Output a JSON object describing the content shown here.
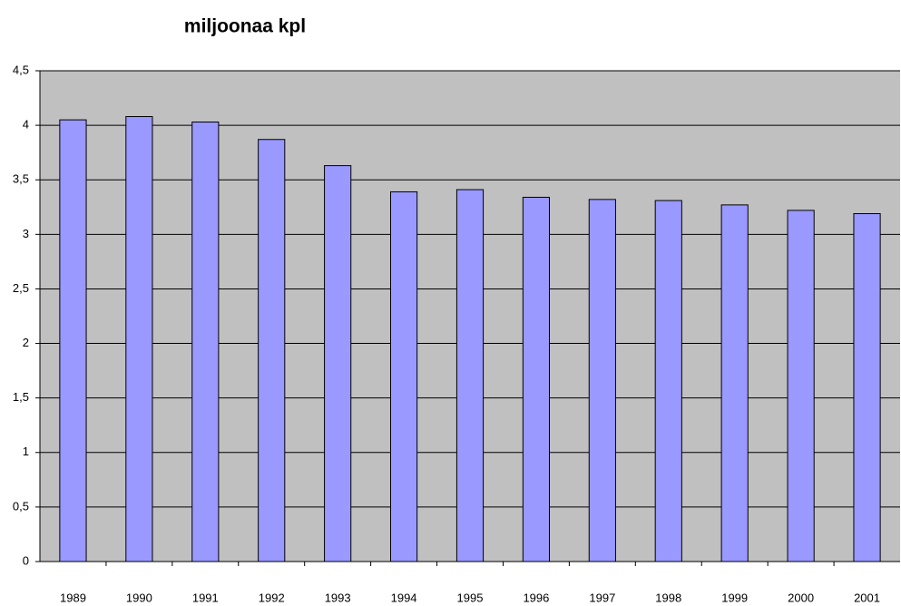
{
  "chart_data": {
    "type": "bar",
    "title": "miljoonaa kpl",
    "categories": [
      "1989",
      "1990",
      "1991",
      "1992",
      "1993",
      "1994",
      "1995",
      "1996",
      "1997",
      "1998",
      "1999",
      "2000",
      "2001"
    ],
    "values": [
      4.05,
      4.08,
      4.03,
      3.87,
      3.63,
      3.39,
      3.41,
      3.34,
      3.32,
      3.31,
      3.27,
      3.22,
      3.19
    ],
    "color": "#9999ff",
    "ylim": [
      0,
      4.5
    ],
    "yticks": [
      0,
      {
        "value": 0.5,
        "label": "0,5"
      },
      1,
      {
        "value": 1.5,
        "label": "1,5"
      },
      2,
      {
        "value": 2.5,
        "label": "2,5"
      },
      3,
      {
        "value": 3.5,
        "label": "3,5"
      },
      4,
      {
        "value": 4.5,
        "label": "4,5"
      }
    ],
    "grid": true
  }
}
